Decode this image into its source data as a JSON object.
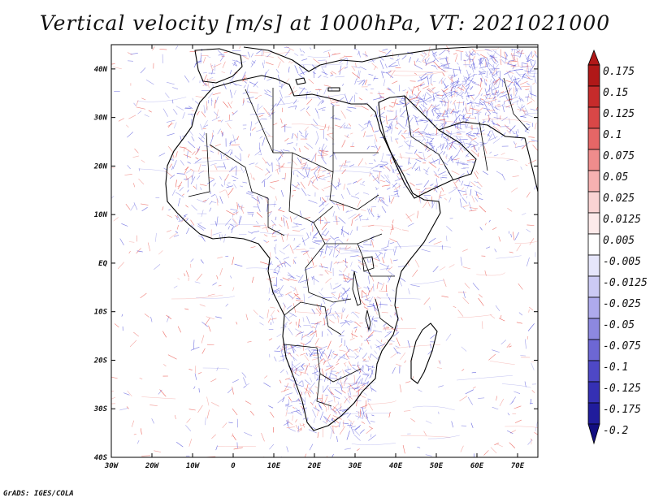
{
  "map": {
    "title": "Vertical velocity [m/s] at 1000hPa, VT: 2021021000",
    "credit": "GrADS: IGES/COLA",
    "lon_ticks": [
      "30W",
      "20W",
      "10W",
      "0",
      "10E",
      "20E",
      "30E",
      "40E",
      "50E",
      "60E",
      "70E"
    ],
    "lat_ticks": [
      "40N",
      "30N",
      "20N",
      "10N",
      "EQ",
      "10S",
      "20S",
      "30S",
      "40S"
    ],
    "lon_range": [
      -30,
      75
    ],
    "lat_range": [
      -40,
      45
    ],
    "colorbar": {
      "levels": [
        "0.175",
        "0.15",
        "0.125",
        "0.1",
        "0.075",
        "0.05",
        "0.025",
        "0.0125",
        "0.005",
        "-0.005",
        "-0.0125",
        "-0.025",
        "-0.05",
        "-0.075",
        "-0.1",
        "-0.125",
        "-0.175",
        "-0.2"
      ],
      "colors": [
        "#b01818",
        "#c62b2b",
        "#d94747",
        "#e56666",
        "#ef8c8c",
        "#f6b1b1",
        "#fad3d3",
        "#fdeaea",
        "#ffffff",
        "#e6e6fb",
        "#cccaf4",
        "#aeaaec",
        "#8d88e0",
        "#6d67d4",
        "#4e48c6",
        "#3530b4",
        "#201c9c",
        "#120e80"
      ]
    },
    "colors": {
      "positive": "#e8453c",
      "negative": "#4a4ad8",
      "coast": "#000000"
    }
  }
}
